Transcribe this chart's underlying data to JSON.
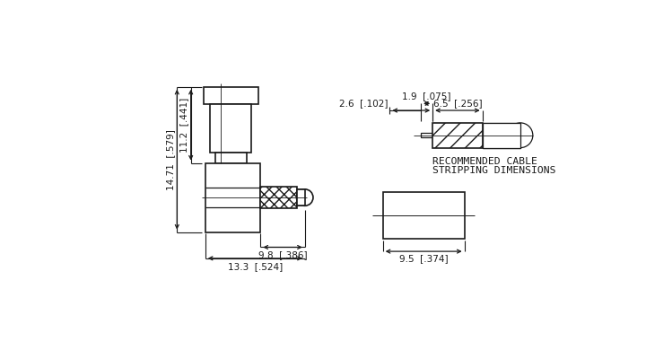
{
  "bg_color": "#ffffff",
  "line_color": "#1a1a1a",
  "dim_labels": {
    "width_98": "9.8  [.386]",
    "width_133": "13.3  [.524]",
    "height_1471": "14.71  [.579]",
    "height_112": "11.2  [.441]",
    "top_19": "1.9  [.075]",
    "top_65": "6.5  [.256]",
    "top_26": "2.6  [.102]",
    "bot_95": "9.5  [.374]"
  },
  "recommended_cable_text": [
    "RECOMMENDED CABLE",
    "STRIPPING DIMENSIONS"
  ]
}
